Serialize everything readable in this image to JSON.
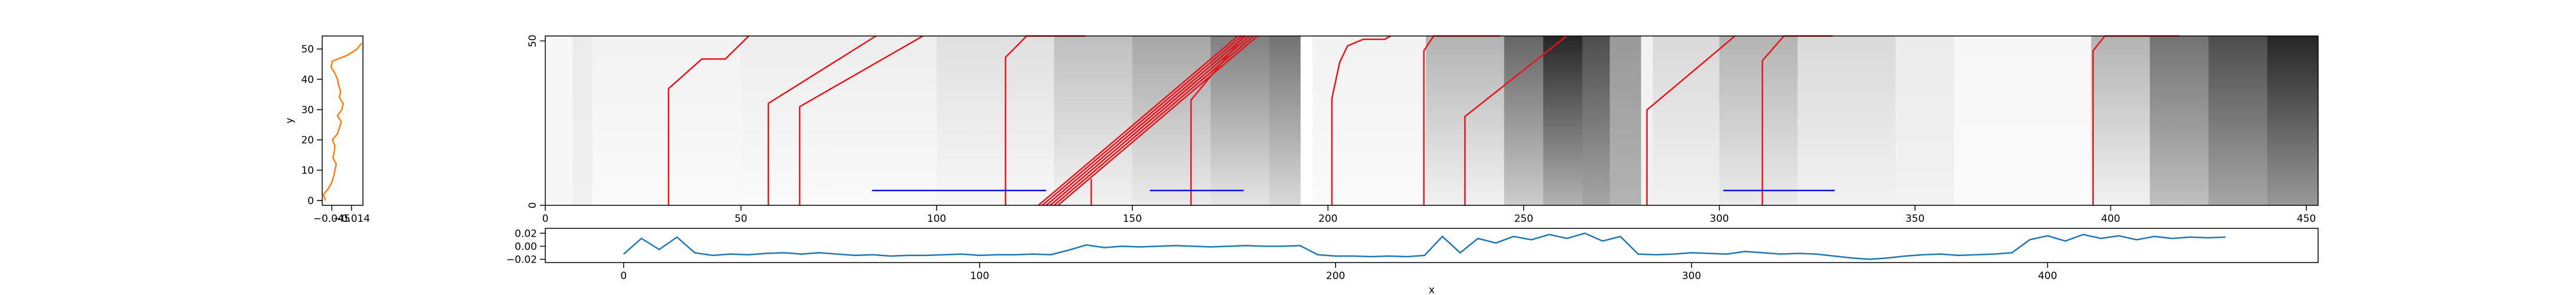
{
  "chart_data": [
    {
      "type": "profile",
      "ylabel": "y",
      "color": "#ff7f0e",
      "xlim": [
        -0.06,
        0.004
      ],
      "xticks": [
        {
          "value": -0.045,
          "label": "−0.045"
        },
        {
          "value": -0.014,
          "label": "−0.014"
        }
      ],
      "ylim": [
        -1.6,
        54.3
      ],
      "yticks": [
        0,
        10,
        20,
        30,
        40,
        50
      ],
      "y": [
        0,
        2,
        4,
        6,
        8,
        10,
        12,
        14,
        16,
        18,
        20,
        22,
        24,
        26,
        28,
        30,
        32,
        34,
        36,
        38,
        40,
        42,
        44,
        46,
        48,
        50,
        52
      ],
      "values": [
        -0.055,
        -0.058,
        -0.05,
        -0.045,
        -0.042,
        -0.04,
        -0.038,
        -0.043,
        -0.041,
        -0.04,
        -0.044,
        -0.036,
        -0.033,
        -0.03,
        -0.036,
        -0.029,
        -0.027,
        -0.033,
        -0.031,
        -0.034,
        -0.036,
        -0.04,
        -0.046,
        -0.044,
        -0.02,
        -0.005,
        0.002
      ]
    },
    {
      "type": "heatmap",
      "xlim": [
        0,
        453
      ],
      "xticks": [
        0,
        50,
        100,
        150,
        200,
        250,
        300,
        350,
        400,
        450
      ],
      "ylim": [
        0,
        51.5
      ],
      "yticks": [
        0,
        50
      ],
      "bands": [
        {
          "x": [
            0,
            7
          ],
          "values": [
            0.03,
            0.03
          ]
        },
        {
          "x": [
            7,
            12
          ],
          "values": [
            0.08,
            0.06
          ]
        },
        {
          "x": [
            12,
            50
          ],
          "values": [
            0.05,
            0.02
          ]
        },
        {
          "x": [
            50,
            100
          ],
          "values": [
            0.07,
            0.02
          ]
        },
        {
          "x": [
            100,
            130
          ],
          "values": [
            0.12,
            0.03
          ]
        },
        {
          "x": [
            130,
            150
          ],
          "values": [
            0.25,
            0.05
          ]
        },
        {
          "x": [
            150,
            170
          ],
          "values": [
            0.35,
            0.08
          ]
        },
        {
          "x": [
            170,
            185
          ],
          "values": [
            0.5,
            0.1
          ]
        },
        {
          "x": [
            185,
            193
          ],
          "values": [
            0.55,
            0.15
          ]
        },
        {
          "x": [
            193,
            196
          ],
          "values": [
            0,
            0
          ]
        },
        {
          "x": [
            196,
            225
          ],
          "values": [
            0.05,
            0.02
          ]
        },
        {
          "x": [
            225,
            245
          ],
          "values": [
            0.3,
            0.05
          ]
        },
        {
          "x": [
            245,
            255
          ],
          "values": [
            0.6,
            0.2
          ]
        },
        {
          "x": [
            255,
            265
          ],
          "values": [
            0.85,
            0.3
          ]
        },
        {
          "x": [
            265,
            272
          ],
          "values": [
            0.7,
            0.35
          ]
        },
        {
          "x": [
            272,
            280
          ],
          "values": [
            0.4,
            0.3
          ]
        },
        {
          "x": [
            280,
            283
          ],
          "values": [
            0.05,
            0.05
          ]
        },
        {
          "x": [
            283,
            300
          ],
          "values": [
            0.15,
            0.05
          ]
        },
        {
          "x": [
            300,
            320
          ],
          "values": [
            0.3,
            0.08
          ]
        },
        {
          "x": [
            320,
            345
          ],
          "values": [
            0.15,
            0.05
          ]
        },
        {
          "x": [
            345,
            360
          ],
          "values": [
            0.08,
            0.05
          ]
        },
        {
          "x": [
            360,
            395
          ],
          "values": [
            0.03,
            0.02
          ]
        },
        {
          "x": [
            395,
            410
          ],
          "values": [
            0.3,
            0.05
          ]
        },
        {
          "x": [
            410,
            425
          ],
          "values": [
            0.55,
            0.25
          ]
        },
        {
          "x": [
            425,
            440
          ],
          "values": [
            0.7,
            0.35
          ]
        },
        {
          "x": [
            440,
            453
          ],
          "values": [
            0.85,
            0.4
          ]
        }
      ],
      "lines": [
        {
          "color": "#e8141c",
          "x": [
            31.5,
            31.5,
            40,
            46,
            52
          ],
          "y": [
            0,
            35.5,
            44.5,
            44.5,
            51.5
          ]
        },
        {
          "color": "#e8141c",
          "x": [
            57,
            57,
            84.5
          ],
          "y": [
            0,
            31,
            51.5
          ]
        },
        {
          "color": "#e8141c",
          "x": [
            65,
            65,
            96.5
          ],
          "y": [
            0,
            30,
            51.5
          ]
        },
        {
          "color": "#e8141c",
          "x": [
            117.6,
            117.6,
            123,
            138
          ],
          "y": [
            0,
            45,
            51.5,
            51.5
          ]
        },
        {
          "color": "#e8141c",
          "x": [
            126,
            177
          ],
          "y": [
            0,
            51.5
          ]
        },
        {
          "color": "#e8141c",
          "x": [
            127,
            178
          ],
          "y": [
            0,
            51.5
          ]
        },
        {
          "color": "#e8141c",
          "x": [
            128,
            179
          ],
          "y": [
            0,
            51.5
          ]
        },
        {
          "color": "#e8141c",
          "x": [
            129,
            180
          ],
          "y": [
            0,
            51.5
          ]
        },
        {
          "color": "#e8141c",
          "x": [
            130,
            181
          ],
          "y": [
            0,
            51.5
          ]
        },
        {
          "color": "#e8141c",
          "x": [
            131,
            182
          ],
          "y": [
            0,
            51.5
          ]
        },
        {
          "color": "#e8141c",
          "x": [
            139.5,
            139.5
          ],
          "y": [
            0,
            8
          ]
        },
        {
          "color": "#e8141c",
          "x": [
            165,
            165,
            178.5
          ],
          "y": [
            0,
            32,
            51.5
          ]
        },
        {
          "color": "#e8141c",
          "x": [
            201,
            201,
            203,
            205,
            209,
            214.5,
            216
          ],
          "y": [
            0,
            32.5,
            43.5,
            48.5,
            50.5,
            50.5,
            51.5
          ]
        },
        {
          "color": "#e8141c",
          "x": [
            224.5,
            224.5,
            227,
            244
          ],
          "y": [
            0,
            47,
            51.5,
            51.5
          ]
        },
        {
          "color": "#e8141c",
          "x": [
            235,
            235,
            261
          ],
          "y": [
            0,
            27,
            51.5
          ]
        },
        {
          "color": "#e8141c",
          "x": [
            281.5,
            281.5,
            304
          ],
          "y": [
            0,
            29,
            51.5
          ]
        },
        {
          "color": "#e8141c",
          "x": [
            311,
            311,
            316.5,
            329
          ],
          "y": [
            0,
            44,
            51.5,
            51.5
          ]
        },
        {
          "color": "#e8141c",
          "x": [
            395.5,
            395.5,
            398.5,
            417.5
          ],
          "y": [
            0,
            47,
            51.5,
            51.5
          ]
        }
      ],
      "segments": [
        {
          "color": "#1010e0",
          "x": [
            83.5,
            128
          ],
          "y": [
            4.5,
            4.5
          ]
        },
        {
          "color": "#1010e0",
          "x": [
            154.5,
            178.5
          ],
          "y": [
            4.5,
            4.5
          ]
        },
        {
          "color": "#1010e0",
          "x": [
            301,
            329.5
          ],
          "y": [
            4.5,
            4.5
          ]
        }
      ]
    },
    {
      "type": "line",
      "xlabel": "x",
      "color": "#1f77b4",
      "xlim": [
        -22,
        476
      ],
      "xticks": [
        0,
        100,
        200,
        300,
        400
      ],
      "ylim": [
        -0.025,
        0.0275
      ],
      "yticks": [
        0.02,
        {
          "value": 0,
          "label": "0.00"
        },
        {
          "value": -0.02,
          "label": "−0.02"
        }
      ],
      "x": [
        0,
        5,
        10,
        15,
        20,
        25,
        30,
        35,
        40,
        45,
        50,
        55,
        60,
        65,
        70,
        75,
        80,
        85,
        90,
        95,
        100,
        105,
        110,
        115,
        120,
        125,
        130,
        135,
        140,
        145,
        150,
        155,
        160,
        165,
        170,
        175,
        180,
        185,
        190,
        195,
        200,
        205,
        210,
        215,
        220,
        225,
        230,
        235,
        240,
        245,
        250,
        255,
        260,
        265,
        270,
        275,
        280,
        285,
        290,
        295,
        300,
        305,
        310,
        315,
        320,
        325,
        330,
        335,
        340,
        345,
        350,
        355,
        360,
        365,
        370,
        375,
        380,
        385,
        390,
        395,
        400,
        405,
        410,
        415,
        420,
        425,
        430,
        435,
        440,
        445,
        450
      ],
      "values": [
        -0.012,
        0.012,
        -0.005,
        0.014,
        -0.01,
        -0.014,
        -0.012,
        -0.013,
        -0.011,
        -0.01,
        -0.012,
        -0.01,
        -0.012,
        -0.014,
        -0.013,
        -0.015,
        -0.014,
        -0.014,
        -0.013,
        -0.012,
        -0.014,
        -0.013,
        -0.013,
        -0.012,
        -0.013,
        -0.006,
        0.002,
        -0.002,
        0.0,
        -0.001,
        0.0,
        0.001,
        0.0,
        -0.001,
        0.0,
        0.001,
        0.0,
        0.0,
        0.001,
        -0.013,
        -0.015,
        -0.015,
        -0.016,
        -0.015,
        -0.016,
        -0.014,
        0.015,
        -0.01,
        0.012,
        0.005,
        0.015,
        0.01,
        0.018,
        0.012,
        0.02,
        0.008,
        0.015,
        -0.012,
        -0.013,
        -0.012,
        -0.01,
        -0.011,
        -0.012,
        -0.008,
        -0.01,
        -0.012,
        -0.011,
        -0.012,
        -0.015,
        -0.018,
        -0.02,
        -0.018,
        -0.015,
        -0.013,
        -0.012,
        -0.014,
        -0.013,
        -0.012,
        -0.01,
        0.01,
        0.016,
        0.008,
        0.018,
        0.012,
        0.016,
        0.01,
        0.015,
        0.012,
        0.014,
        0.013,
        0.014
      ]
    }
  ]
}
